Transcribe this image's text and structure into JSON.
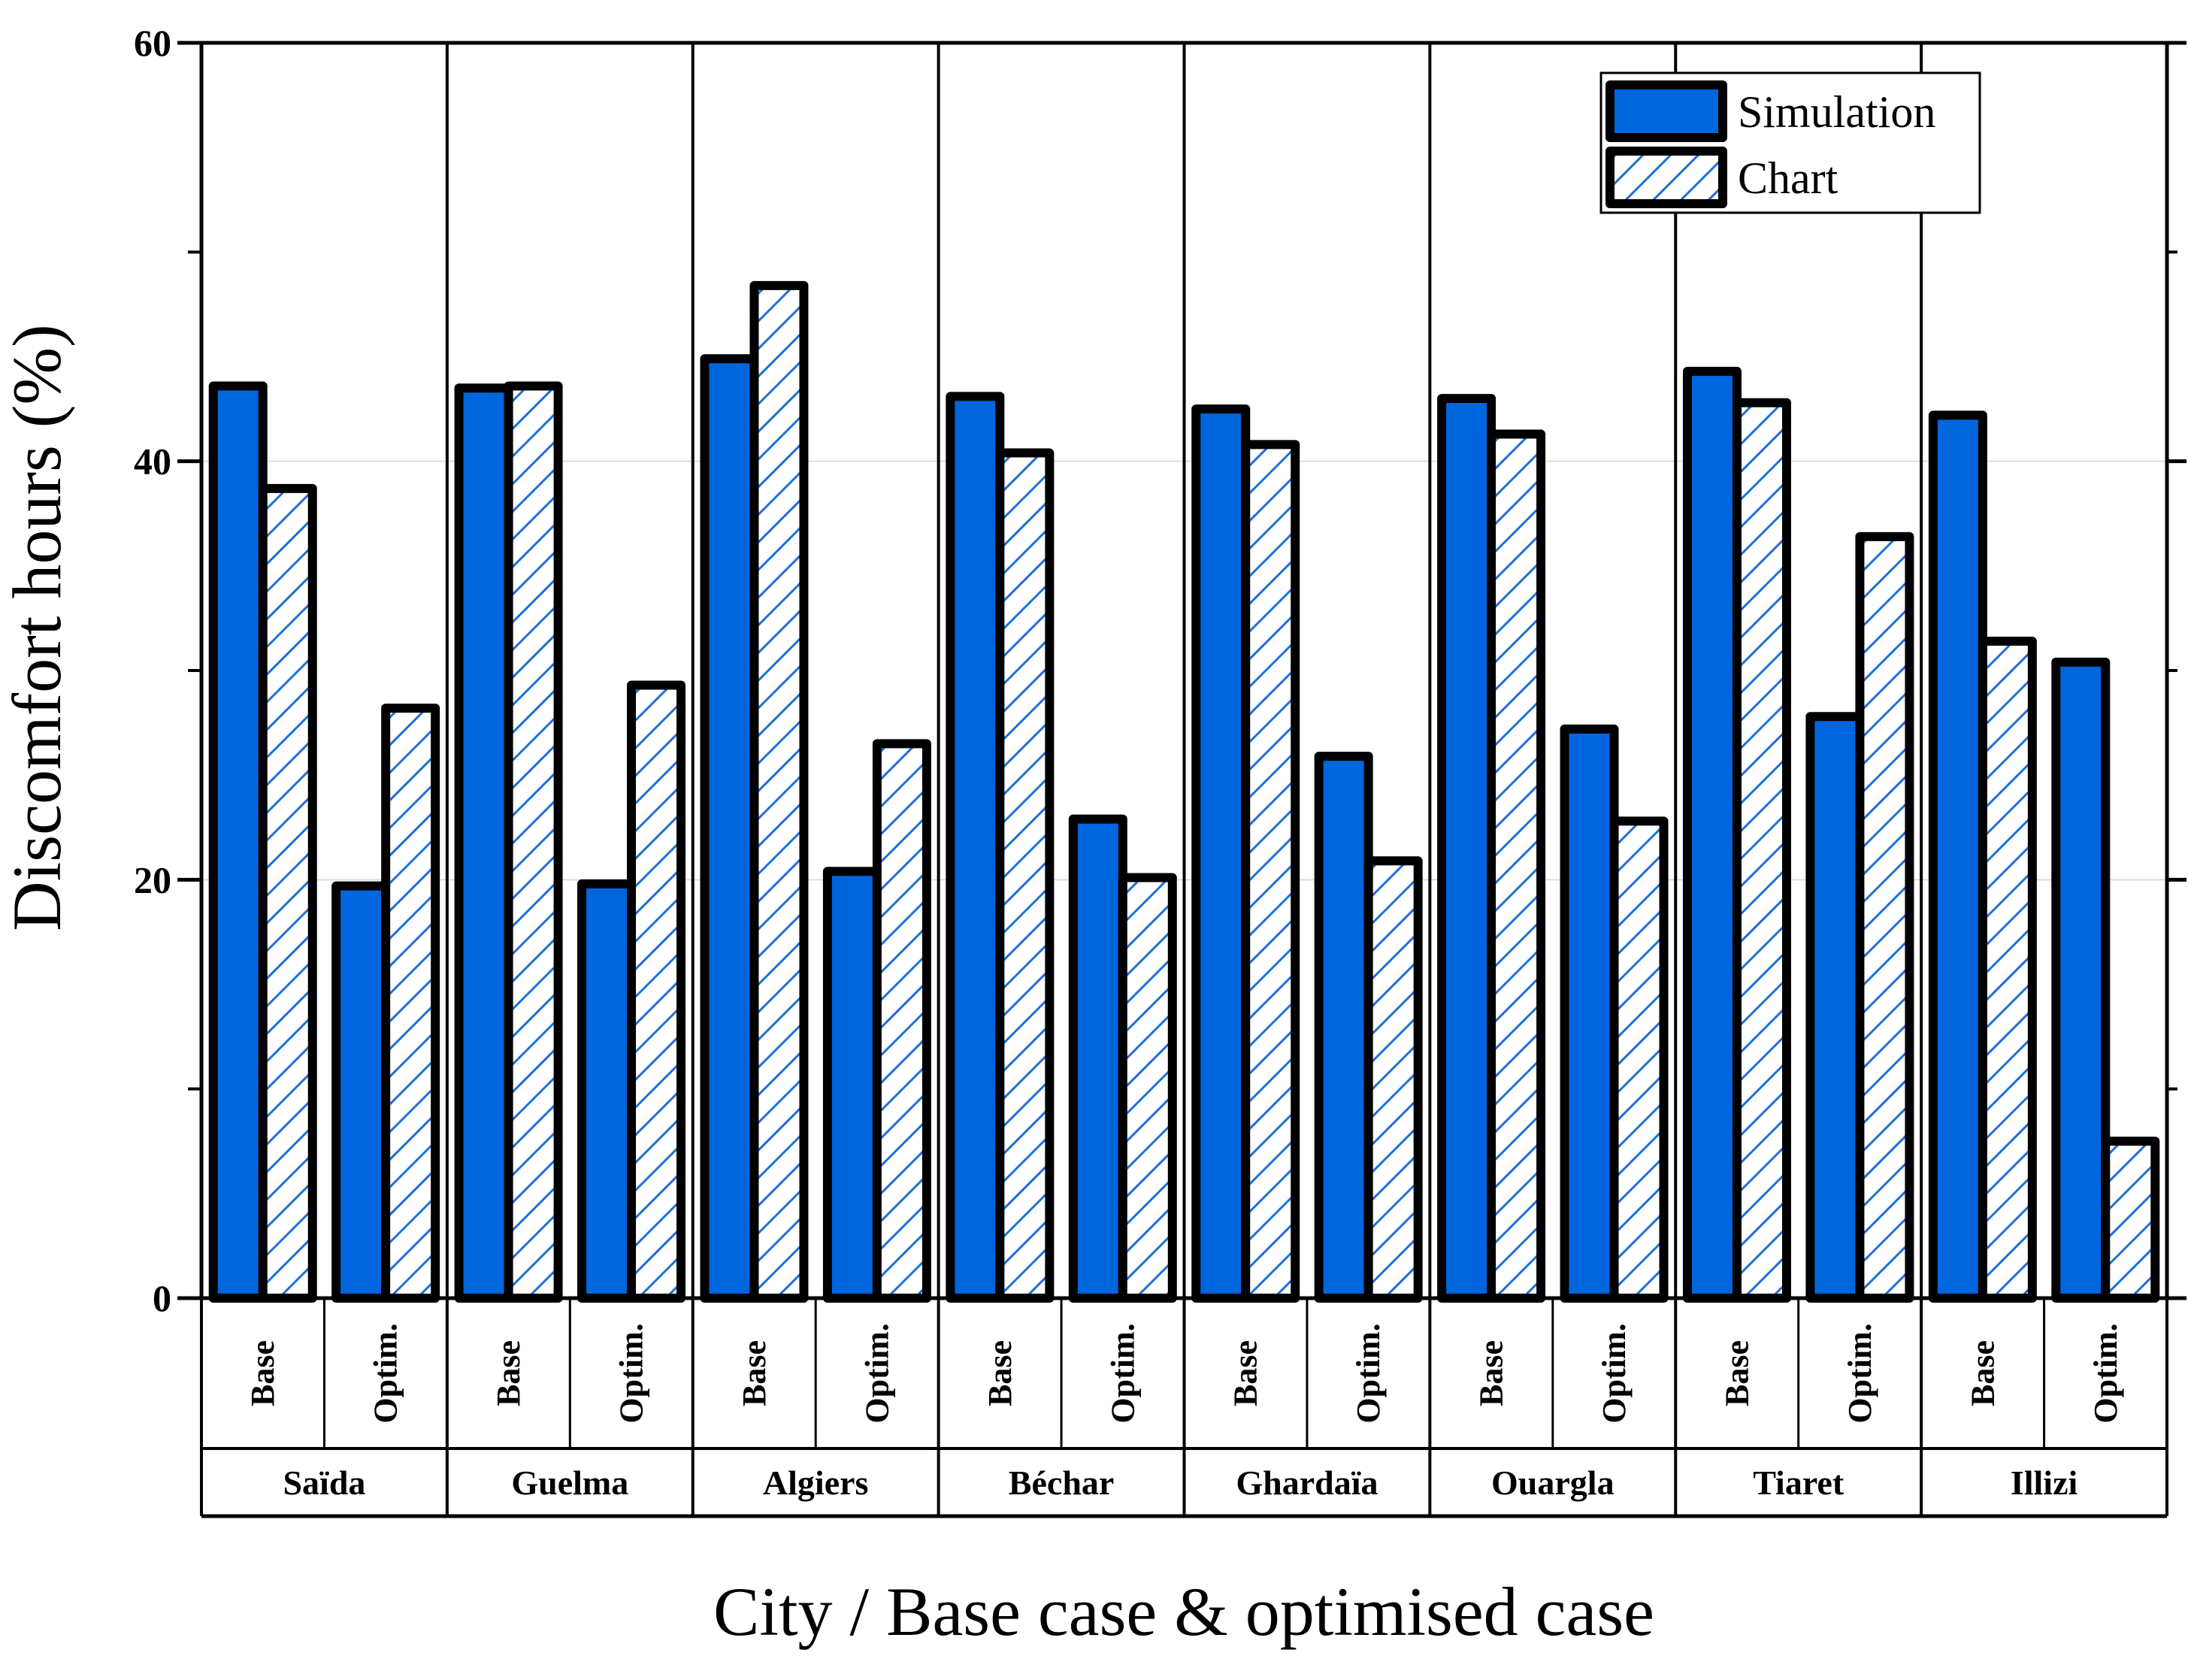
{
  "chart_data": {
    "type": "bar",
    "title": "",
    "xlabel": "City / Base case & optimised case",
    "ylabel": "Discomfort hours (%)",
    "ylim": [
      0,
      60
    ],
    "yticks": [
      0,
      20,
      40,
      60
    ],
    "grid": "horizontal",
    "legend_position": "top-right",
    "groups": [
      "Saïda",
      "Guelma",
      "Algiers",
      "Béchar",
      "Ghardaïa",
      "Ouargla",
      "Tiaret",
      "Illizi"
    ],
    "cases": [
      "Base",
      "Optim."
    ],
    "series": [
      {
        "name": "Simulation",
        "style": "solid",
        "values": [
          43.6,
          19.7,
          43.5,
          19.8,
          44.9,
          20.4,
          43.1,
          22.9,
          42.5,
          25.9,
          43.0,
          27.2,
          44.3,
          27.8,
          42.2,
          30.4
        ]
      },
      {
        "name": "Chart",
        "style": "hatched",
        "values": [
          38.7,
          28.2,
          43.6,
          29.3,
          48.4,
          26.5,
          40.4,
          20.1,
          40.8,
          20.9,
          41.3,
          22.8,
          42.8,
          36.4,
          31.4,
          7.5
        ]
      }
    ]
  },
  "colors": {
    "bar_fill": "#0066dd",
    "hatch_color": "#1f6fd6",
    "border": "#000000",
    "grid": "#dddddd"
  }
}
